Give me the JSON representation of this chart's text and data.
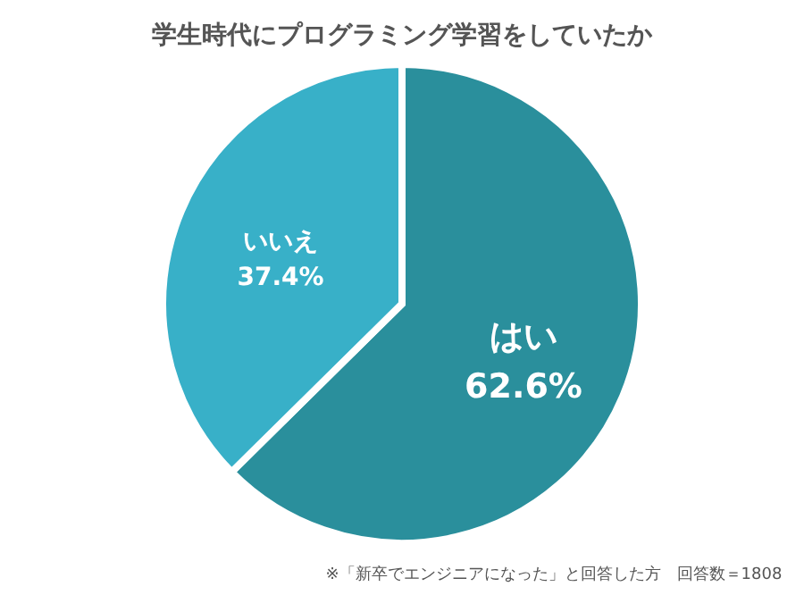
{
  "chart_data": {
    "type": "pie",
    "title": "学生時代にプログラミング学習をしていたか",
    "categories": [
      "はい",
      "いいえ"
    ],
    "values": [
      62.6,
      37.4
    ],
    "colors": [
      "#2a8f9c",
      "#38b0c8"
    ],
    "value_labels": [
      "62.6%",
      "37.4%"
    ],
    "annotations": [
      "※「新卒でエンジニアになった」と回答した方　回答数＝1808"
    ],
    "legend": false
  }
}
